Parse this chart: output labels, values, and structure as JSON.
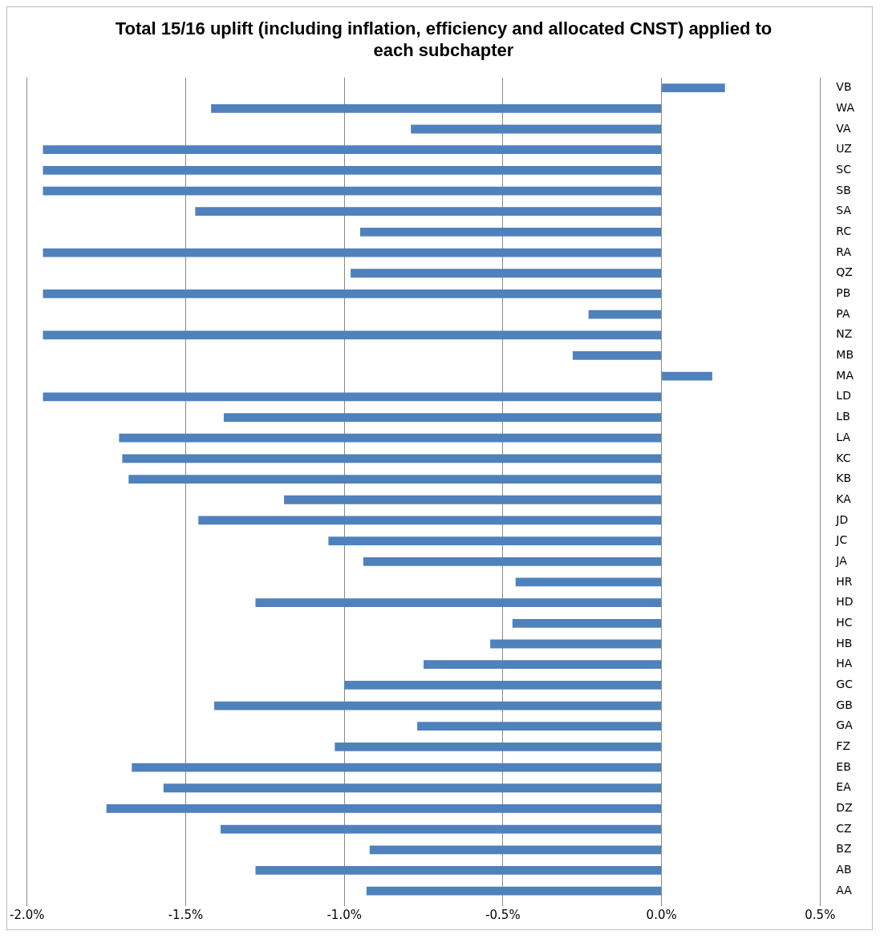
{
  "chart_data": {
    "type": "bar",
    "orientation": "horizontal",
    "title": "Total 15/16 uplift (including inflation, efficiency and allocated CNST) applied to each subchapter",
    "categories": [
      "VB",
      "WA",
      "VA",
      "UZ",
      "SC",
      "SB",
      "SA",
      "RC",
      "RA",
      "QZ",
      "PB",
      "PA",
      "NZ",
      "MB",
      "MA",
      "LD",
      "LB",
      "LA",
      "KC",
      "KB",
      "KA",
      "JD",
      "JC",
      "JA",
      "HR",
      "HD",
      "HC",
      "HB",
      "HA",
      "GC",
      "GB",
      "GA",
      "FZ",
      "EB",
      "EA",
      "DZ",
      "CZ",
      "BZ",
      "AB",
      "AA"
    ],
    "values": [
      0.2,
      -1.42,
      -0.79,
      -1.95,
      -1.95,
      -1.95,
      -1.47,
      -0.95,
      -1.95,
      -0.98,
      -1.95,
      -0.23,
      -1.95,
      -0.28,
      0.16,
      -1.95,
      -1.38,
      -1.71,
      -1.7,
      -1.68,
      -1.19,
      -1.46,
      -1.05,
      -0.94,
      -0.46,
      -1.28,
      -0.47,
      -0.54,
      -0.75,
      -1.0,
      -1.41,
      -0.77,
      -1.03,
      -1.67,
      -1.57,
      -1.75,
      -1.39,
      -0.92,
      -1.28,
      -0.93
    ],
    "color": "#4f81bd",
    "xlim": [
      -2,
      0.5
    ],
    "xticks": [
      {
        "value": -2,
        "label": "-2.0%"
      },
      {
        "value": -1.5,
        "label": "-1.5%"
      },
      {
        "value": -1,
        "label": "-1.0%"
      },
      {
        "value": -0.5,
        "label": "-0.5%"
      },
      {
        "value": 0,
        "label": "0.0%"
      },
      {
        "value": 0.5,
        "label": "0.5%"
      }
    ],
    "grid": "x",
    "legend": false
  }
}
